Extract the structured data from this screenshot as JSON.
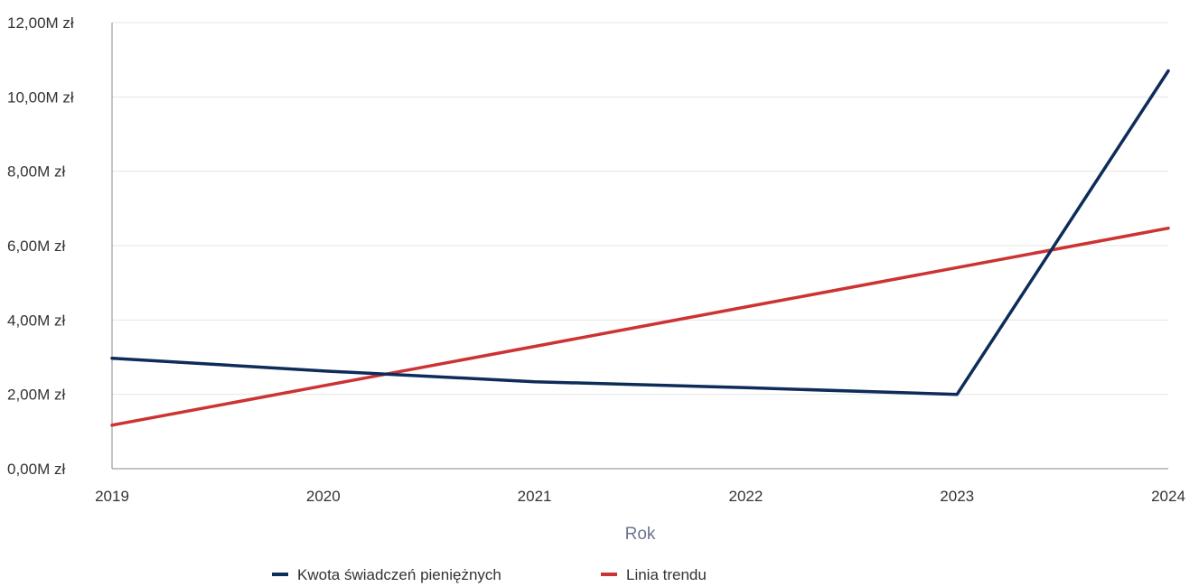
{
  "chart_data": {
    "type": "line",
    "title": "",
    "xlabel": "Rok",
    "ylabel": "",
    "x": [
      2019,
      2020,
      2021,
      2022,
      2023,
      2024
    ],
    "x_tick_labels": [
      "2019",
      "2020",
      "2021",
      "2022",
      "2023",
      "2024"
    ],
    "ylim": [
      0,
      12
    ],
    "y_ticks": [
      0,
      2,
      4,
      6,
      8,
      10,
      12
    ],
    "y_tick_labels": [
      "0,00M zł",
      "2,00M zł",
      "4,00M zł",
      "6,00M zł",
      "8,00M zł",
      "10,00M zł",
      "12,00M zł"
    ],
    "grid": true,
    "legend_position": "bottom-center",
    "series": [
      {
        "name": "Kwota świadczeń pieniężnych",
        "color": "#0d2c5a",
        "values": [
          2.97,
          2.63,
          2.34,
          2.18,
          2.0,
          10.7
        ]
      },
      {
        "name": "Linia trendu",
        "color": "#cc3333",
        "values": [
          1.17,
          2.23,
          3.29,
          4.35,
          5.41,
          6.47
        ]
      }
    ]
  }
}
